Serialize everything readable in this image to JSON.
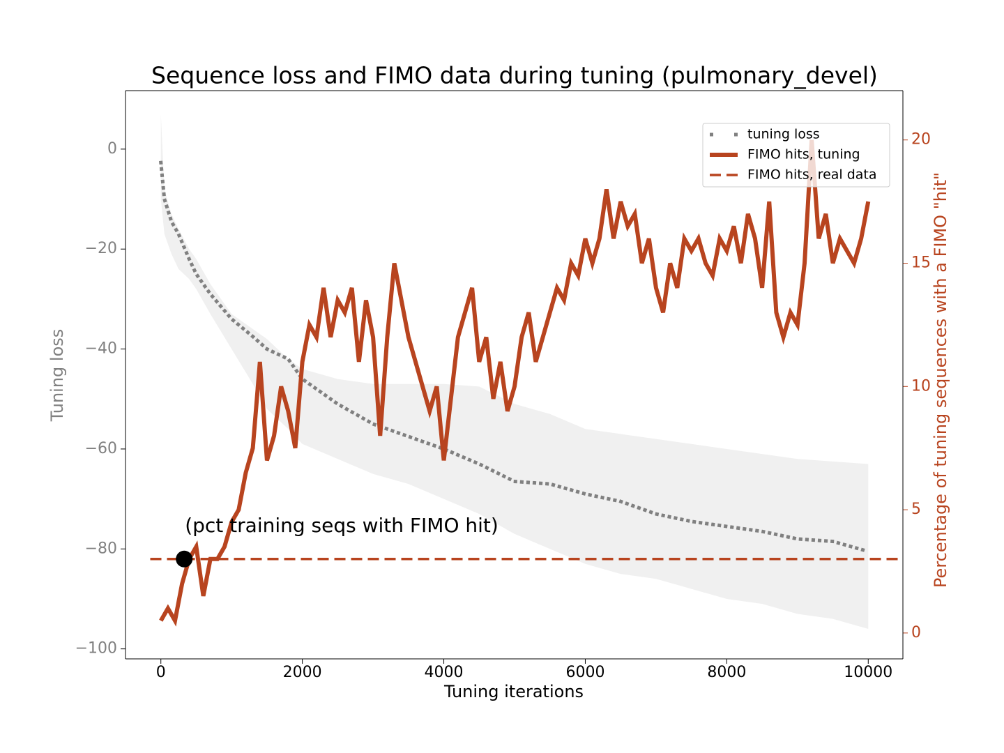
{
  "chart_data": {
    "type": "line",
    "title": "Sequence loss and FIMO data during tuning (pulmonary_devel)",
    "xlabel": "Tuning iterations",
    "ylabel": "Tuning loss",
    "y2label": "Percentage of tuning sequences with a FIMO \"hit\"",
    "y_color": "#808080",
    "y2_color": "#b8441f",
    "xlim": [
      -500,
      10490
    ],
    "xticks": [
      0,
      2000,
      4000,
      6000,
      8000,
      10000
    ],
    "ylim": [
      -102,
      11.7
    ],
    "yticks": [
      {
        "value": -100,
        "label": "−100"
      },
      {
        "value": -80,
        "label": "−80"
      },
      {
        "value": -60,
        "label": "−60"
      },
      {
        "value": -40,
        "label": "−40"
      },
      {
        "value": -20,
        "label": "−20"
      },
      0
    ],
    "y2lim": [
      -1.05,
      22
    ],
    "y2ticks": [
      0,
      5,
      10,
      15,
      20
    ],
    "legend": "upper right",
    "series": [
      {
        "name": "tuning loss",
        "color": "#808080",
        "style": "dotted",
        "band_color": "#f0f0f0",
        "x": [
          0,
          50,
          150,
          250,
          400,
          500,
          700,
          1000,
          1300,
          1500,
          1800,
          2000,
          2500,
          3000,
          3500,
          4000,
          4500,
          5000,
          5500,
          6000,
          6500,
          7000,
          7500,
          8000,
          8500,
          9000,
          9500,
          10000
        ],
        "values": [
          -2.7,
          -10,
          -14.5,
          -17,
          -22,
          -25,
          -29,
          -34,
          -37.5,
          -40,
          -42,
          -46,
          -51,
          -55,
          -57.5,
          -60,
          -63,
          -66.5,
          -67,
          -69,
          -70.5,
          -73,
          -74.5,
          -75.5,
          -76.5,
          -78,
          -78.5,
          -80.5
        ],
        "upper": [
          7,
          -8,
          -13,
          -16,
          -20,
          -22,
          -27,
          -33,
          -36,
          -38,
          -42,
          -44,
          -46,
          -47,
          -47,
          -47,
          -47.5,
          -51,
          -53,
          -56,
          -57,
          -58,
          -59,
          -60,
          -61,
          -62,
          -62.5,
          -63
        ],
        "lower": [
          -10,
          -17,
          -21,
          -24,
          -26,
          -28,
          -33,
          -40,
          -47,
          -52,
          -56,
          -59,
          -62,
          -65,
          -67,
          -70,
          -73,
          -77,
          -80,
          -83,
          -85,
          -86,
          -88,
          -90,
          -91,
          -93,
          -94,
          -96
        ]
      },
      {
        "name": "FIMO hits, tuning",
        "color": "#b8441f",
        "style": "solid",
        "axis": "y2",
        "x": [
          0,
          100,
          200,
          300,
          400,
          500,
          600,
          700,
          800,
          900,
          1000,
          1100,
          1200,
          1300,
          1400,
          1500,
          1600,
          1700,
          1800,
          1900,
          2000,
          2100,
          2200,
          2300,
          2400,
          2500,
          2600,
          2700,
          2800,
          2900,
          3000,
          3100,
          3200,
          3300,
          3400,
          3500,
          3600,
          3700,
          3800,
          3900,
          4000,
          4100,
          4200,
          4300,
          4400,
          4500,
          4600,
          4700,
          4800,
          4900,
          5000,
          5100,
          5200,
          5300,
          5400,
          5500,
          5600,
          5700,
          5800,
          5900,
          6000,
          6100,
          6200,
          6300,
          6400,
          6500,
          6600,
          6700,
          6800,
          6900,
          7000,
          7100,
          7200,
          7300,
          7400,
          7500,
          7600,
          7700,
          7800,
          7900,
          8000,
          8100,
          8200,
          8300,
          8400,
          8500,
          8600,
          8700,
          8800,
          8900,
          9000,
          9100,
          9200,
          9300,
          9400,
          9500,
          9600,
          9700,
          9800,
          9900,
          10000
        ],
        "values": [
          0.5,
          1,
          0.5,
          2,
          3,
          3.5,
          1.5,
          3,
          3,
          3.5,
          4.5,
          5,
          6.5,
          7.5,
          11,
          7,
          8,
          10,
          9,
          7.5,
          11,
          12.5,
          12,
          14,
          12,
          13.5,
          13,
          14,
          11,
          13.5,
          12,
          8,
          12,
          15,
          13.5,
          12,
          11,
          10,
          9,
          10,
          7,
          9.5,
          12,
          13,
          14,
          11,
          12,
          9.5,
          11,
          9,
          10,
          12,
          13,
          11,
          12,
          13,
          14,
          13.5,
          15,
          14.5,
          16,
          15,
          16,
          18,
          16,
          17.5,
          16.5,
          17,
          15,
          16,
          14,
          13,
          15,
          14,
          16,
          15.5,
          16,
          15,
          14.5,
          16,
          15.5,
          16.5,
          15,
          17,
          16,
          14,
          17.5,
          13,
          12,
          13,
          12.5,
          15,
          20,
          16,
          17,
          15,
          16,
          15.5,
          15,
          16,
          17.5
        ]
      },
      {
        "name": "FIMO hits, real data",
        "color": "#b8441f",
        "style": "dashed",
        "axis": "y2",
        "x": [
          -150,
          10440
        ],
        "values": [
          3,
          3
        ]
      }
    ],
    "point": {
      "x": 330,
      "value": 3,
      "color": "#000000"
    },
    "annotation": "(pct training seqs with FIMO hit)"
  }
}
